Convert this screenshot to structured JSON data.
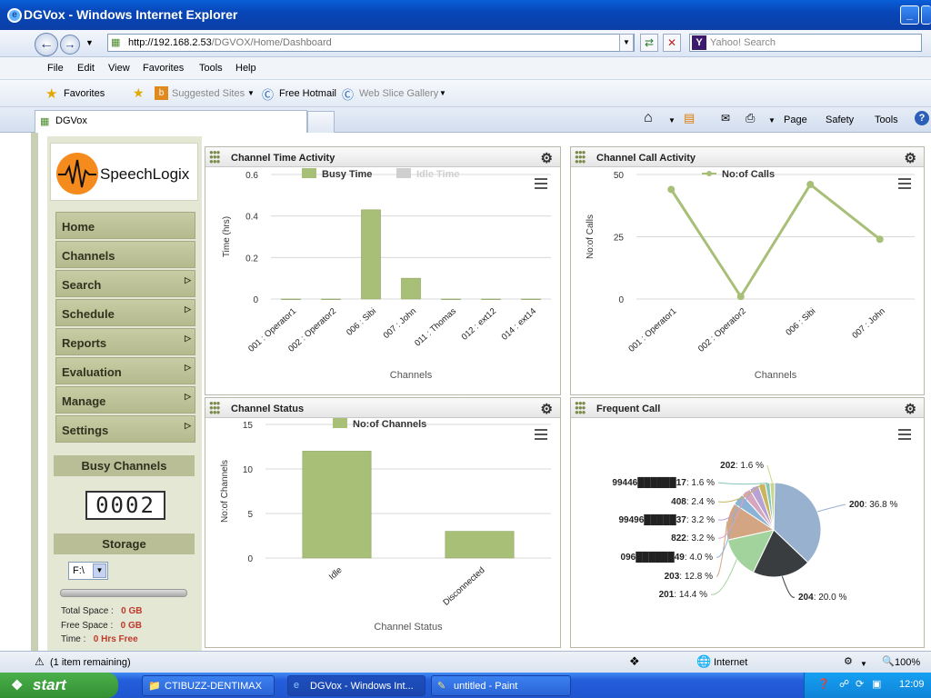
{
  "window": {
    "title": "DGVox - Windows Internet Explorer"
  },
  "address": {
    "url_host": "http://192.168.2.53",
    "url_path": "/DGVOX/Home/Dashboard",
    "search_placeholder": "Yahoo! Search"
  },
  "menu": [
    "File",
    "Edit",
    "View",
    "Favorites",
    "Tools",
    "Help"
  ],
  "favorites": {
    "label": "Favorites",
    "suggested": "Suggested Sites",
    "hotmail": "Free Hotmail",
    "webslice": "Web Slice Gallery"
  },
  "tab": {
    "title": "DGVox"
  },
  "commandbar": {
    "page": "Page",
    "safety": "Safety",
    "tools": "Tools"
  },
  "logo": {
    "text": "SpeechLogix"
  },
  "sidebar": {
    "items": [
      {
        "label": "Home",
        "arrow": false
      },
      {
        "label": "Channels",
        "arrow": false
      },
      {
        "label": "Search",
        "arrow": true
      },
      {
        "label": "Schedule",
        "arrow": true
      },
      {
        "label": "Reports",
        "arrow": true
      },
      {
        "label": "Evaluation",
        "arrow": true
      },
      {
        "label": "Manage",
        "arrow": true
      },
      {
        "label": "Settings",
        "arrow": true
      }
    ],
    "busy_title": "Busy Channels",
    "busy_value": "0002",
    "storage_title": "Storage",
    "drive": "F:\\",
    "total_label": "Total Space :",
    "total_value": "0 GB",
    "free_label": "Free Space :",
    "free_value": "0 GB",
    "time_label": "Time :",
    "time_value": "0 Hrs Free"
  },
  "panels": {
    "time_activity": "Channel Time Activity",
    "call_activity": "Channel Call Activity",
    "status": "Channel Status",
    "frequent": "Frequent Call"
  },
  "chart_data": [
    {
      "type": "bar",
      "categories": [
        "001 : Operator1",
        "002 : Operator2",
        "006 : Sibi",
        "007 : John",
        "011 : Thomas",
        "012 : ext12",
        "014 : ext14"
      ],
      "series": [
        {
          "name": "Busy Time",
          "values": [
            0,
            0,
            0.43,
            0.1,
            0,
            0,
            0
          ],
          "color": "#a7bf76"
        },
        {
          "name": "Idle Time",
          "values": [
            0,
            0,
            0,
            0,
            0,
            0,
            0
          ],
          "color": "#cfcfcf"
        }
      ],
      "xlabel": "Channels",
      "ylabel": "Time (hrs)",
      "ylim": [
        0,
        0.6
      ],
      "yticks": [
        "0",
        "0.2",
        "0.4",
        "0.6"
      ],
      "legend": "top-center",
      "grid": true
    },
    {
      "type": "line",
      "categories": [
        "001 : Operator1",
        "002 : Operator2",
        "006 : Sibi",
        "007 : John"
      ],
      "series": [
        {
          "name": "No:of Calls",
          "values": [
            44,
            1,
            46,
            24
          ],
          "color": "#a7bf76"
        }
      ],
      "xlabel": "Channels",
      "ylabel": "No:of Calls",
      "ylim": [
        0,
        50
      ],
      "yticks": [
        "0",
        "25",
        "50"
      ],
      "legend": "top-center",
      "grid": true
    },
    {
      "type": "bar",
      "categories": [
        "Idle",
        "Disconnected"
      ],
      "series": [
        {
          "name": "No:of Channels",
          "values": [
            12,
            3
          ],
          "color": "#a7bf76"
        }
      ],
      "xlabel": "Channel Status",
      "ylabel": "No:of Channels",
      "ylim": [
        0,
        15
      ],
      "yticks": [
        "0",
        "5",
        "10",
        "15"
      ],
      "legend": "top-center",
      "grid": true
    },
    {
      "type": "pie",
      "slices": [
        {
          "label": "200",
          "pct": "36.8 %",
          "value": 36.8,
          "color": "#97b1cf"
        },
        {
          "label": "204",
          "pct": "20.0 %",
          "value": 20.0,
          "color": "#3a3d3f"
        },
        {
          "label": "201",
          "pct": "14.4 %",
          "value": 14.4,
          "color": "#a3d39c"
        },
        {
          "label": "203",
          "pct": "12.8 %",
          "value": 12.8,
          "color": "#d3a583"
        },
        {
          "label": "096██████49",
          "pct": "4.0 %",
          "value": 4.0,
          "color": "#8ab4d6"
        },
        {
          "label": "822",
          "pct": "3.2 %",
          "value": 3.2,
          "color": "#d5a6bd"
        },
        {
          "label": "99496█████37",
          "pct": "3.2 %",
          "value": 3.2,
          "color": "#b6a2d3"
        },
        {
          "label": "408",
          "pct": "2.4 %",
          "value": 2.4,
          "color": "#c9b45f"
        },
        {
          "label": "99446██████17",
          "pct": "1.6 %",
          "value": 1.6,
          "color": "#86c6b8"
        },
        {
          "label": "202",
          "pct": "1.6 %",
          "value": 1.6,
          "color": "#c7d58c"
        }
      ]
    }
  ],
  "statusbar": {
    "left": "(1 item remaining)",
    "zone": "Internet",
    "zoom": "100%"
  },
  "taskbar": {
    "start": "start",
    "tasks": [
      "CTIBUZZ-DENTIMAX",
      "DGVox - Windows Int...",
      "untitled - Paint"
    ],
    "clock": "12:09"
  }
}
